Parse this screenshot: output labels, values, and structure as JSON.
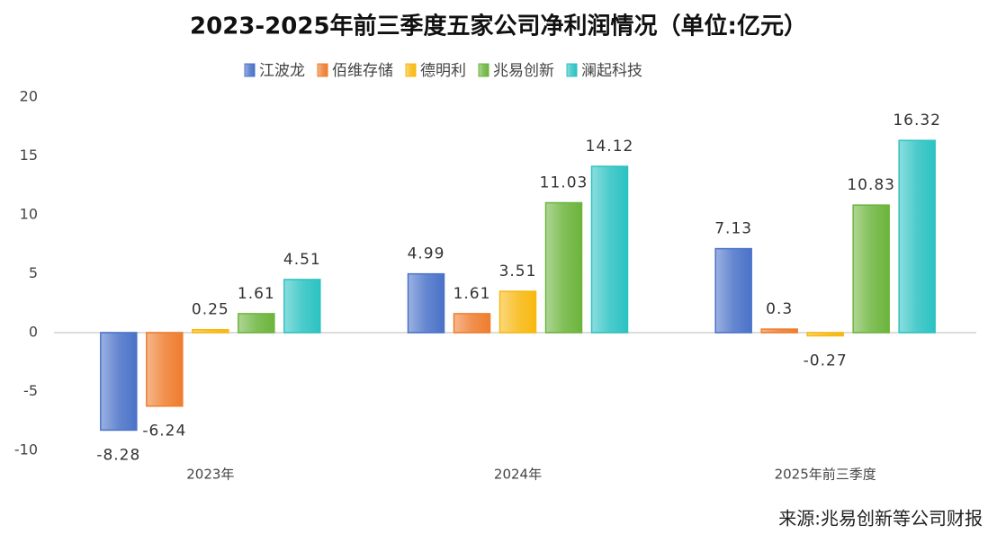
{
  "chart_data": {
    "type": "bar",
    "title": "2023-2025年前三季度五家公司净利润情况（单位:亿元）",
    "categories": [
      "2023年",
      "2024年",
      "2025年前三季度"
    ],
    "series": [
      {
        "name": "江波龙",
        "color": "#4a72c8",
        "values": [
          -8.28,
          4.99,
          7.13
        ]
      },
      {
        "name": "佰维存储",
        "color": "#ee7d2e",
        "values": [
          -6.24,
          1.61,
          0.3
        ]
      },
      {
        "name": "德明利",
        "color": "#f8b810",
        "values": [
          0.25,
          3.51,
          -0.27
        ]
      },
      {
        "name": "兆易创新",
        "color": "#6cb43c",
        "values": [
          1.61,
          11.03,
          10.83
        ]
      },
      {
        "name": "澜起科技",
        "color": "#2cc2c2",
        "values": [
          4.51,
          14.12,
          16.32
        ]
      }
    ],
    "ylim": [
      -10,
      20
    ],
    "yticks": [
      -10,
      -5,
      0,
      5,
      10,
      15,
      20
    ],
    "grid": false,
    "source": "来源:兆易创新等公司财报"
  }
}
